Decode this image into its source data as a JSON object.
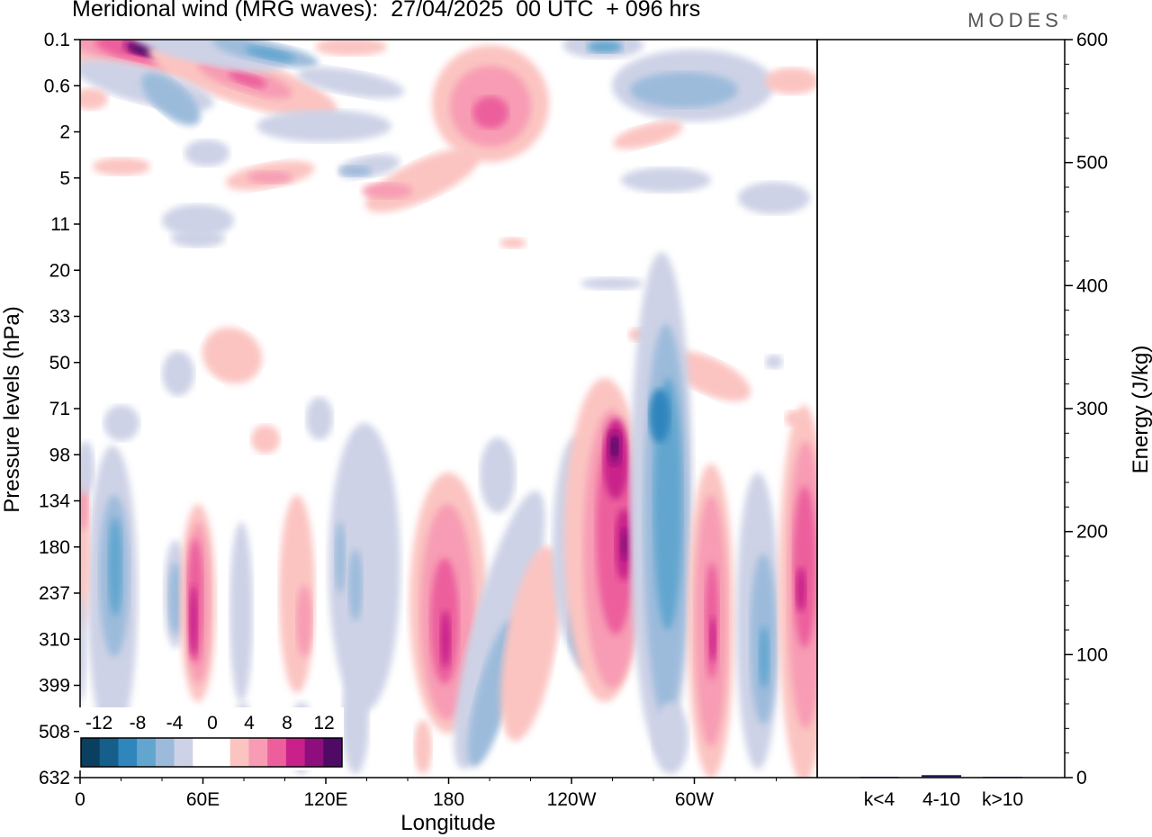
{
  "chart_data": [
    {
      "type": "heatmap",
      "title": "Meridional wind (MRG waves):  27/04/2025  00 UTC  + 096 hrs",
      "xlabel": "Longitude",
      "ylabel": "Pressure levels (hPa)",
      "x_ticks": [
        "0",
        "60E",
        "120E",
        "180",
        "120W",
        "60W"
      ],
      "y_ticks": [
        "0.1",
        "0.6",
        "2",
        "5",
        "11",
        "20",
        "33",
        "50",
        "71",
        "98",
        "134",
        "180",
        "237",
        "310",
        "399",
        "508",
        "632"
      ],
      "colorbar": {
        "labels": [
          "-12",
          "-8",
          "-4",
          "0",
          "4",
          "8",
          "12"
        ],
        "levels": [
          -14,
          -12,
          -10,
          -8,
          -6,
          -4,
          -2,
          2,
          4,
          6,
          8,
          10,
          12,
          14
        ],
        "colors": [
          "#0a3f5f",
          "#155f8a",
          "#2f86bd",
          "#62a6cf",
          "#9cbbdb",
          "#cdd2e6",
          "#ffffff",
          "#ffffff",
          "#fbc4c1",
          "#f79cb4",
          "#ec5f9c",
          "#c9208a",
          "#8f0e7d",
          "#4f0a66"
        ]
      },
      "features": [
        {
          "lon": 25,
          "level": "0.1",
          "value": 14
        },
        {
          "lon": 60,
          "level": "0.6",
          "value": 8
        },
        {
          "lon": 80,
          "level": "0.1",
          "value": -8
        },
        {
          "lon": 255,
          "level": "0.1",
          "value": -8
        },
        {
          "lon": 300,
          "level": "0.6",
          "value": -8
        },
        {
          "lon": 190,
          "level": "2",
          "value": 8
        },
        {
          "lon": 42,
          "level": "180",
          "value": -8
        },
        {
          "lon": 70,
          "level": "237",
          "value": 10
        },
        {
          "lon": 165,
          "level": "310",
          "value": 8
        },
        {
          "lon": 192,
          "level": "399",
          "value": -8
        },
        {
          "lon": 237,
          "level": "98",
          "value": 14
        },
        {
          "lon": 240,
          "level": "180",
          "value": 12
        },
        {
          "lon": 228,
          "level": "310",
          "value": -8
        },
        {
          "lon": 255,
          "level": "71",
          "value": -12
        },
        {
          "lon": 262,
          "level": "237",
          "value": -10
        },
        {
          "lon": 285,
          "level": "310",
          "value": 8
        },
        {
          "lon": 310,
          "level": "399",
          "value": -8
        },
        {
          "lon": 334,
          "level": "237",
          "value": 8
        }
      ]
    },
    {
      "type": "bar",
      "ylabel": "Energy (J/kg)",
      "categories": [
        "k<4",
        "4-10",
        "k>10"
      ],
      "values": [
        0.5,
        2,
        0.5
      ],
      "ylim": [
        0,
        600
      ],
      "y_ticks": [
        "0",
        "100",
        "200",
        "300",
        "400",
        "500",
        "600"
      ],
      "bar_color": "#1a1a4f"
    }
  ],
  "logo": "MODES",
  "logo_mark": "®"
}
